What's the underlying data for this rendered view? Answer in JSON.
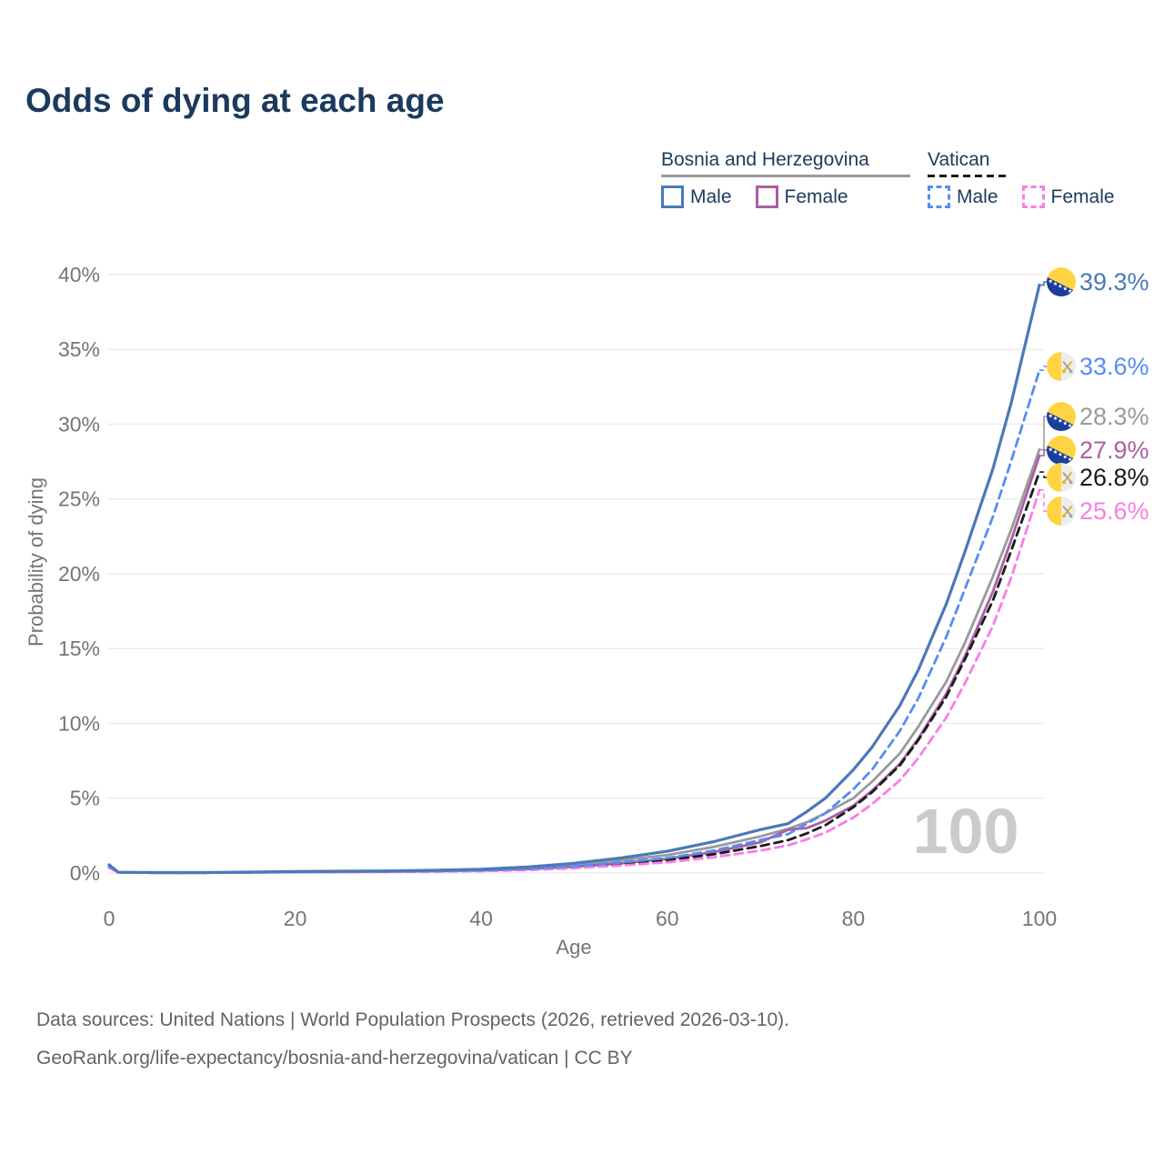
{
  "title": "Odds of dying at each age",
  "legend": {
    "groups": [
      {
        "label": "Bosnia and Herzegovina",
        "underline_style": "solid",
        "underline_color": "#9a9a9a",
        "items": [
          {
            "label": "Male",
            "color": "#4a79b9",
            "dash": false
          },
          {
            "label": "Female",
            "color": "#a95fa5",
            "dash": false
          }
        ]
      },
      {
        "label": "Vatican",
        "underline_style": "dashed",
        "underline_color": "#1b1b1b",
        "items": [
          {
            "label": "Male",
            "color": "#568df2",
            "dash": true
          },
          {
            "label": "Female",
            "color": "#f97de5",
            "dash": true
          }
        ]
      }
    ]
  },
  "watermark": "100",
  "footer": {
    "line1": "Data sources: United Nations | World Population Prospects (2026, retrieved 2026-03-10).",
    "line2": "GeoRank.org/life-expectancy/bosnia-and-herzegovina/vatican | CC BY"
  },
  "chart_data": {
    "type": "line",
    "title": "Odds of dying at each age",
    "xlabel": "Age",
    "ylabel": "Probability of dying",
    "xlim": [
      0,
      100
    ],
    "ylim": [
      0,
      40
    ],
    "grid": "horizontal",
    "legend_position": "top-right",
    "x_ticks": [
      0,
      20,
      40,
      60,
      80,
      100
    ],
    "y_tick_values": [
      0,
      5,
      10,
      15,
      20,
      25,
      30,
      35,
      40
    ],
    "y_tick_labels": [
      "0%",
      "5%",
      "10%",
      "15%",
      "20%",
      "25%",
      "30%",
      "35%",
      "40%"
    ],
    "x": [
      0,
      1,
      5,
      10,
      15,
      20,
      25,
      30,
      35,
      40,
      45,
      50,
      55,
      60,
      65,
      70,
      73,
      75,
      77,
      80,
      82,
      85,
      87,
      90,
      92,
      95,
      97,
      100
    ],
    "series": [
      {
        "name": "Bosnia and Herzegovina — Male",
        "color": "#4a79b9",
        "dash": false,
        "flag": "bosnia",
        "end_label": "39.3%",
        "end_value": 39.3,
        "values": [
          0.55,
          0.05,
          0.03,
          0.03,
          0.06,
          0.1,
          0.12,
          0.14,
          0.18,
          0.25,
          0.4,
          0.65,
          1.0,
          1.45,
          2.1,
          2.9,
          3.3,
          4.1,
          5.0,
          6.9,
          8.4,
          11.2,
          13.6,
          18.0,
          21.5,
          27.0,
          31.5,
          39.3
        ]
      },
      {
        "name": "Vatican — Male",
        "color": "#568df2",
        "dash": true,
        "flag": "vatican",
        "end_label": "33.6%",
        "end_value": 33.6,
        "values": [
          0.45,
          0.04,
          0.02,
          0.02,
          0.04,
          0.07,
          0.09,
          0.1,
          0.13,
          0.18,
          0.28,
          0.45,
          0.7,
          1.0,
          1.5,
          2.2,
          2.6,
          3.3,
          4.0,
          5.6,
          6.9,
          9.5,
          11.7,
          15.8,
          19.0,
          23.8,
          27.6,
          33.6
        ]
      },
      {
        "name": "Bosnia and Herzegovina",
        "color": "#9a9a9a",
        "dash": false,
        "flag": "bosnia",
        "end_label": "28.3%",
        "end_value": 28.3,
        "values": [
          0.5,
          0.05,
          0.03,
          0.03,
          0.05,
          0.09,
          0.1,
          0.12,
          0.16,
          0.22,
          0.34,
          0.55,
          0.85,
          1.2,
          1.75,
          2.45,
          2.95,
          3.4,
          4.0,
          5.0,
          6.1,
          8.0,
          9.8,
          12.8,
          15.4,
          19.8,
          23.0,
          28.3
        ]
      },
      {
        "name": "Bosnia and Herzegovina — Female",
        "color": "#a95fa5",
        "dash": false,
        "flag": "bosnia",
        "end_label": "27.9%",
        "end_value": 27.9,
        "values": [
          0.45,
          0.04,
          0.02,
          0.02,
          0.04,
          0.06,
          0.08,
          0.09,
          0.12,
          0.17,
          0.26,
          0.42,
          0.65,
          0.95,
          1.4,
          2.05,
          2.9,
          3.0,
          3.5,
          4.5,
          5.5,
          7.3,
          9.0,
          12.0,
          14.5,
          18.8,
          22.3,
          27.9
        ]
      },
      {
        "name": "Vatican",
        "color": "#1b1b1b",
        "dash": true,
        "flag": "vatican",
        "end_label": "26.8%",
        "end_value": 26.8,
        "values": [
          0.4,
          0.04,
          0.02,
          0.02,
          0.04,
          0.06,
          0.08,
          0.09,
          0.11,
          0.16,
          0.24,
          0.38,
          0.6,
          0.85,
          1.25,
          1.8,
          2.2,
          2.65,
          3.2,
          4.4,
          5.4,
          7.2,
          8.9,
          11.8,
          14.3,
          18.2,
          21.6,
          26.8
        ]
      },
      {
        "name": "Vatican — Female",
        "color": "#f97de5",
        "dash": true,
        "flag": "vatican",
        "end_label": "25.6%",
        "end_value": 25.6,
        "values": [
          0.35,
          0.03,
          0.02,
          0.02,
          0.03,
          0.05,
          0.06,
          0.07,
          0.09,
          0.13,
          0.2,
          0.32,
          0.5,
          0.72,
          1.05,
          1.5,
          1.85,
          2.25,
          2.7,
          3.7,
          4.6,
          6.2,
          7.7,
          10.4,
          12.7,
          16.5,
          19.8,
          25.6
        ]
      }
    ]
  }
}
